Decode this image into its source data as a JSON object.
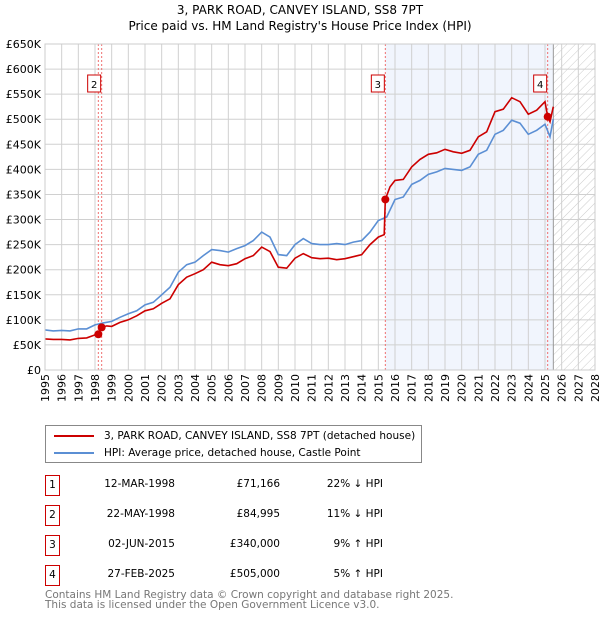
{
  "chart_data": {
    "type": "line",
    "title": "3, PARK ROAD, CANVEY ISLAND, SS8 7PT",
    "subtitle": "Price paid vs. HM Land Registry's House Price Index (HPI)",
    "xlim": [
      1995,
      2028
    ],
    "ylim": [
      0,
      650000
    ],
    "x_ticks": [
      "1995",
      "1996",
      "1997",
      "1998",
      "1999",
      "2000",
      "2001",
      "2002",
      "2003",
      "2004",
      "2005",
      "2006",
      "2007",
      "2008",
      "2009",
      "2010",
      "2011",
      "2012",
      "2013",
      "2014",
      "2015",
      "2016",
      "2017",
      "2018",
      "2019",
      "2020",
      "2021",
      "2022",
      "2023",
      "2024",
      "2025",
      "2026",
      "2027",
      "2028"
    ],
    "y_ticks": [
      {
        "v": 0,
        "label": "£0"
      },
      {
        "v": 50000,
        "label": "£50K"
      },
      {
        "v": 100000,
        "label": "£100K"
      },
      {
        "v": 150000,
        "label": "£150K"
      },
      {
        "v": 200000,
        "label": "£200K"
      },
      {
        "v": 250000,
        "label": "£250K"
      },
      {
        "v": 300000,
        "label": "£300K"
      },
      {
        "v": 350000,
        "label": "£350K"
      },
      {
        "v": 400000,
        "label": "£400K"
      },
      {
        "v": 450000,
        "label": "£450K"
      },
      {
        "v": 500000,
        "label": "£500K"
      },
      {
        "v": 550000,
        "label": "£550K"
      },
      {
        "v": 600000,
        "label": "£600K"
      },
      {
        "v": 650000,
        "label": "£650K"
      }
    ],
    "grid": true,
    "shaded_range": [
      2015.42,
      2025.5
    ],
    "hatched_range": [
      2025.5,
      2028
    ],
    "series": [
      {
        "name": "3, PARK ROAD, CANVEY ISLAND, SS8 7PT (detached house)",
        "color": "#cc0000",
        "x": [
          1995,
          1995.5,
          1996,
          1996.5,
          1997,
          1997.5,
          1998,
          1998.2,
          1998.4,
          1998.7,
          1999,
          1999.5,
          2000,
          2000.5,
          2001,
          2001.5,
          2002,
          2002.5,
          2003,
          2003.5,
          2004,
          2004.5,
          2005,
          2005.5,
          2006,
          2006.5,
          2007,
          2007.5,
          2008,
          2008.5,
          2009,
          2009.5,
          2010,
          2010.5,
          2011,
          2011.5,
          2012,
          2012.5,
          2013,
          2013.5,
          2014,
          2014.5,
          2015,
          2015.35,
          2015.42,
          2015.7,
          2016,
          2016.5,
          2017,
          2017.5,
          2018,
          2018.5,
          2019,
          2019.5,
          2020,
          2020.5,
          2021,
          2021.5,
          2022,
          2022.5,
          2023,
          2023.5,
          2024,
          2024.5,
          2025,
          2025.16,
          2025.3,
          2025.5
        ],
        "y": [
          62000,
          61000,
          61000,
          60000,
          63000,
          64000,
          70000,
          71166,
          84995,
          88000,
          87000,
          95000,
          100000,
          108000,
          118000,
          122000,
          133000,
          142000,
          170000,
          185000,
          192000,
          200000,
          215000,
          210000,
          208000,
          212000,
          222000,
          228000,
          245000,
          236000,
          205000,
          203000,
          223000,
          232000,
          224000,
          222000,
          223000,
          220000,
          222000,
          226000,
          230000,
          250000,
          265000,
          270000,
          340000,
          365000,
          378000,
          380000,
          405000,
          420000,
          430000,
          433000,
          440000,
          435000,
          432000,
          438000,
          465000,
          475000,
          515000,
          520000,
          543000,
          535000,
          510000,
          518000,
          535000,
          505000,
          495000,
          525000
        ]
      },
      {
        "name": "HPI: Average price, detached house, Castle Point",
        "color": "#5b8fd4",
        "x": [
          1995,
          1995.5,
          1996,
          1996.5,
          1997,
          1997.5,
          1998,
          1998.5,
          1999,
          1999.5,
          2000,
          2000.5,
          2001,
          2001.5,
          2002,
          2002.5,
          2003,
          2003.5,
          2004,
          2004.5,
          2005,
          2005.5,
          2006,
          2006.5,
          2007,
          2007.5,
          2008,
          2008.5,
          2009,
          2009.5,
          2010,
          2010.5,
          2011,
          2011.5,
          2012,
          2012.5,
          2013,
          2013.5,
          2014,
          2014.5,
          2015,
          2015.5,
          2016,
          2016.5,
          2017,
          2017.5,
          2018,
          2018.5,
          2019,
          2019.5,
          2020,
          2020.5,
          2021,
          2021.5,
          2022,
          2022.5,
          2023,
          2023.5,
          2024,
          2024.5,
          2025,
          2025.3,
          2025.5
        ],
        "y": [
          80000,
          78000,
          79000,
          78000,
          82000,
          82000,
          90000,
          94000,
          97000,
          105000,
          112000,
          118000,
          130000,
          135000,
          150000,
          165000,
          195000,
          210000,
          215000,
          228000,
          240000,
          238000,
          235000,
          242000,
          248000,
          258000,
          275000,
          265000,
          230000,
          228000,
          250000,
          262000,
          252000,
          250000,
          250000,
          252000,
          250000,
          255000,
          258000,
          275000,
          298000,
          305000,
          340000,
          345000,
          370000,
          378000,
          390000,
          395000,
          402000,
          400000,
          398000,
          405000,
          430000,
          438000,
          470000,
          478000,
          498000,
          492000,
          470000,
          478000,
          490000,
          465000,
          500000
        ]
      }
    ],
    "sales": [
      {
        "id": "1",
        "x": 1998.2,
        "y": 71166,
        "show_label": false
      },
      {
        "id": "2",
        "x": 1998.4,
        "y": 84995,
        "show_label": true
      },
      {
        "id": "3",
        "x": 2015.42,
        "y": 340000,
        "show_label": true
      },
      {
        "id": "4",
        "x": 2025.16,
        "y": 505000,
        "show_label": true
      }
    ]
  },
  "legend": {
    "property": "3, PARK ROAD, CANVEY ISLAND, SS8 7PT (detached house)",
    "hpi": "HPI: Average price, detached house, Castle Point"
  },
  "transactions": [
    {
      "num": "1",
      "date": "12-MAR-1998",
      "price": "£71,166",
      "hpi": "22% ↓ HPI"
    },
    {
      "num": "2",
      "date": "22-MAY-1998",
      "price": "£84,995",
      "hpi": "11% ↓ HPI"
    },
    {
      "num": "3",
      "date": "02-JUN-2015",
      "price": "£340,000",
      "hpi": "9% ↑ HPI"
    },
    {
      "num": "4",
      "date": "27-FEB-2025",
      "price": "£505,000",
      "hpi": "5% ↑ HPI"
    }
  ],
  "footer": {
    "line1": "Contains HM Land Registry data © Crown copyright and database right 2025.",
    "line2": "This data is licensed under the Open Government Licence v3.0."
  }
}
